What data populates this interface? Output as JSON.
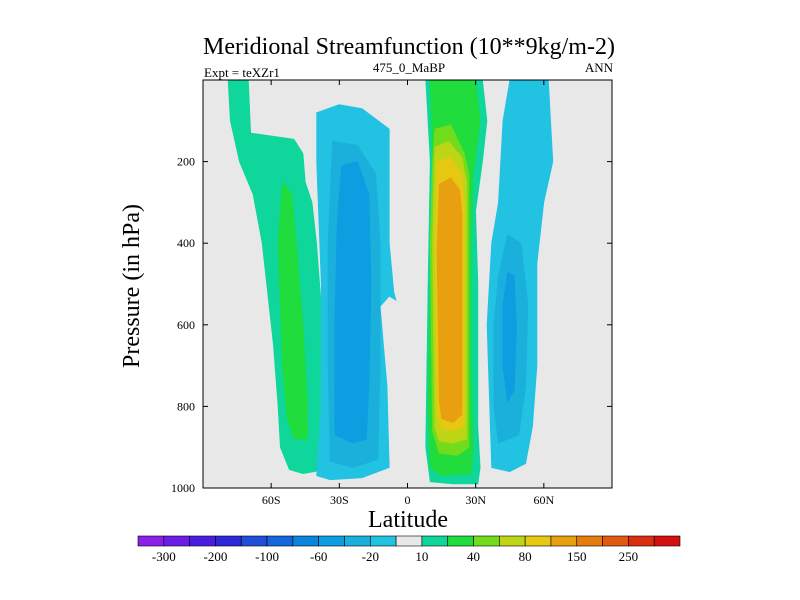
{
  "chart_data": {
    "type": "heatmap",
    "title": "Meridional Streamfunction (10**9kg/m-2)",
    "left_label": "Expt = teXZr1",
    "center_label": "475_0_MaBP",
    "right_label": "ANN",
    "xlabel": "Latitude",
    "ylabel": "Pressure (in hPa)",
    "xlim": [
      -90,
      90
    ],
    "ylim": [
      1000,
      0
    ],
    "x_ticks": [
      {
        "value": -60,
        "label": "60S"
      },
      {
        "value": -30,
        "label": "30S"
      },
      {
        "value": 0,
        "label": "0"
      },
      {
        "value": 30,
        "label": "30N"
      },
      {
        "value": 60,
        "label": "60N"
      }
    ],
    "y_ticks": [
      {
        "value": 200,
        "label": "200"
      },
      {
        "value": 400,
        "label": "400"
      },
      {
        "value": 600,
        "label": "600"
      },
      {
        "value": 800,
        "label": "800"
      },
      {
        "value": 1000,
        "label": "1000"
      }
    ],
    "colorbar": {
      "levels": [
        -300,
        -250,
        -200,
        -150,
        -100,
        -80,
        -60,
        -40,
        -20,
        -10,
        10,
        20,
        40,
        60,
        80,
        100,
        150,
        200,
        250,
        300
      ],
      "labels": [
        "-300",
        "-200",
        "-100",
        "-60",
        "-20",
        "10",
        "40",
        "80",
        "150",
        "250"
      ],
      "colors": [
        "#8b20e8",
        "#6a1ee6",
        "#4a1ee0",
        "#2a28d8",
        "#1f4fd8",
        "#1466dc",
        "#0a84dc",
        "#0c9ee0",
        "#1bb0dc",
        "#22c2e2",
        "#e8e8e8",
        "#0fd69a",
        "#20dc3c",
        "#72dc1c",
        "#bcd616",
        "#e6c812",
        "#e8a010",
        "#e47c10",
        "#e05a12",
        "#d92e12",
        "#d41010"
      ]
    },
    "background_color": "#e8e8e8",
    "cells": [
      {
        "level": "10 to 20",
        "color": "#0fd69a",
        "polygon": [
          [
            -79,
            0
          ],
          [
            -70,
            0
          ],
          [
            -69,
            130
          ],
          [
            -50,
            145
          ],
          [
            -46,
            180
          ],
          [
            -45,
            250
          ],
          [
            -42,
            300
          ],
          [
            -40,
            400
          ],
          [
            -38,
            550
          ],
          [
            -37,
            700
          ],
          [
            -36,
            800
          ],
          [
            -35,
            900
          ],
          [
            -36,
            955
          ],
          [
            -46,
            965
          ],
          [
            -52,
            955
          ],
          [
            -56,
            900
          ],
          [
            -57,
            800
          ],
          [
            -59,
            650
          ],
          [
            -64,
            400
          ],
          [
            -68,
            280
          ],
          [
            -74,
            200
          ],
          [
            -78,
            100
          ]
        ]
      },
      {
        "level": "20 to 40",
        "color": "#20dc3c",
        "polygon": [
          [
            -55,
            250
          ],
          [
            -51,
            280
          ],
          [
            -49,
            400
          ],
          [
            -46,
            600
          ],
          [
            -44,
            800
          ],
          [
            -44,
            880
          ],
          [
            -50,
            880
          ],
          [
            -53,
            830
          ],
          [
            -55,
            700
          ],
          [
            -56,
            550
          ],
          [
            -57,
            400
          ]
        ]
      },
      {
        "level": "-10 to -20",
        "color": "#22c2e2",
        "polygon": [
          [
            -40,
            80
          ],
          [
            -30,
            60
          ],
          [
            -20,
            70
          ],
          [
            -8,
            120
          ],
          [
            -8,
            400
          ],
          [
            -6,
            520
          ],
          [
            -5,
            540
          ],
          [
            -8,
            530
          ],
          [
            -12,
            555
          ],
          [
            -9,
            750
          ],
          [
            -8,
            950
          ],
          [
            -20,
            975
          ],
          [
            -34,
            980
          ],
          [
            -40,
            970
          ],
          [
            -38,
            800
          ],
          [
            -38,
            500
          ],
          [
            -40,
            200
          ]
        ]
      },
      {
        "level": "-20 to -40",
        "color": "#1bb0dc",
        "polygon": [
          [
            -33,
            150
          ],
          [
            -22,
            160
          ],
          [
            -14,
            230
          ],
          [
            -12,
            400
          ],
          [
            -12,
            700
          ],
          [
            -13,
            930
          ],
          [
            -24,
            950
          ],
          [
            -34,
            935
          ],
          [
            -35,
            700
          ],
          [
            -35,
            400
          ]
        ]
      },
      {
        "level": "-40 to -60",
        "color": "#0c9ee0",
        "polygon": [
          [
            -29,
            210
          ],
          [
            -22,
            200
          ],
          [
            -17,
            280
          ],
          [
            -16,
            500
          ],
          [
            -17,
            750
          ],
          [
            -18,
            880
          ],
          [
            -24,
            890
          ],
          [
            -32,
            870
          ],
          [
            -32,
            600
          ],
          [
            -31,
            350
          ]
        ]
      },
      {
        "level": "10 to 20",
        "color": "#0fd69a",
        "polygon": [
          [
            8,
            0
          ],
          [
            25,
            0
          ],
          [
            33,
            0
          ],
          [
            35,
            100
          ],
          [
            33,
            200
          ],
          [
            30,
            320
          ],
          [
            31,
            500
          ],
          [
            31,
            700
          ],
          [
            31,
            850
          ],
          [
            32,
            950
          ],
          [
            31,
            990
          ],
          [
            20,
            990
          ],
          [
            10,
            985
          ],
          [
            8,
            900
          ],
          [
            9,
            500
          ],
          [
            10,
            200
          ]
        ]
      },
      {
        "level": "20 to 40",
        "color": "#20dc3c",
        "polygon": [
          [
            10,
            0
          ],
          [
            27,
            0
          ],
          [
            30,
            0
          ],
          [
            32,
            100
          ],
          [
            29,
            230
          ],
          [
            28,
            400
          ],
          [
            28,
            700
          ],
          [
            29,
            900
          ],
          [
            28,
            965
          ],
          [
            15,
            970
          ],
          [
            10,
            950
          ],
          [
            9,
            800
          ],
          [
            10,
            500
          ],
          [
            11,
            200
          ]
        ]
      },
      {
        "level": "40 to 60",
        "color": "#72dc1c",
        "polygon": [
          [
            12,
            120
          ],
          [
            19,
            110
          ],
          [
            25,
            180
          ],
          [
            27,
            230
          ],
          [
            27,
            900
          ],
          [
            22,
            920
          ],
          [
            14,
            915
          ],
          [
            11,
            860
          ],
          [
            10,
            400
          ],
          [
            11,
            200
          ]
        ]
      },
      {
        "level": "60 to 80",
        "color": "#bcd616",
        "polygon": [
          [
            12,
            165
          ],
          [
            18,
            150
          ],
          [
            24,
            190
          ],
          [
            26,
            250
          ],
          [
            26,
            880
          ],
          [
            20,
            890
          ],
          [
            14,
            885
          ],
          [
            12,
            850
          ],
          [
            11,
            400
          ]
        ]
      },
      {
        "level": "80 to 100",
        "color": "#e6c812",
        "polygon": [
          [
            13,
            200
          ],
          [
            19,
            190
          ],
          [
            24,
            230
          ],
          [
            25,
            300
          ],
          [
            25,
            850
          ],
          [
            20,
            860
          ],
          [
            15,
            855
          ],
          [
            13,
            820
          ],
          [
            12,
            400
          ]
        ]
      },
      {
        "level": "100 to 150",
        "color": "#e8a010",
        "polygon": [
          [
            14,
            255
          ],
          [
            19,
            240
          ],
          [
            23,
            270
          ],
          [
            24,
            330
          ],
          [
            24,
            820
          ],
          [
            20,
            840
          ],
          [
            15,
            830
          ],
          [
            14,
            790
          ],
          [
            13,
            420
          ]
        ]
      },
      {
        "level": "-10 to -20",
        "color": "#22c2e2",
        "polygon": [
          [
            45,
            0
          ],
          [
            62,
            0
          ],
          [
            64,
            200
          ],
          [
            60,
            300
          ],
          [
            57,
            450
          ],
          [
            57,
            700
          ],
          [
            55,
            850
          ],
          [
            52,
            940
          ],
          [
            45,
            960
          ],
          [
            37,
            950
          ],
          [
            35,
            600
          ],
          [
            37,
            400
          ],
          [
            40,
            300
          ],
          [
            42,
            100
          ]
        ]
      },
      {
        "level": "-20 to -40",
        "color": "#1bb0dc",
        "polygon": [
          [
            44,
            380
          ],
          [
            50,
            400
          ],
          [
            53,
            550
          ],
          [
            52,
            750
          ],
          [
            49,
            870
          ],
          [
            40,
            890
          ],
          [
            38,
            800
          ],
          [
            38,
            600
          ],
          [
            40,
            480
          ]
        ]
      },
      {
        "level": "-40 to -60",
        "color": "#0c9ee0",
        "polygon": [
          [
            44,
            470
          ],
          [
            47,
            480
          ],
          [
            48,
            600
          ],
          [
            47,
            760
          ],
          [
            44,
            790
          ],
          [
            42,
            700
          ],
          [
            42,
            550
          ]
        ]
      }
    ]
  }
}
